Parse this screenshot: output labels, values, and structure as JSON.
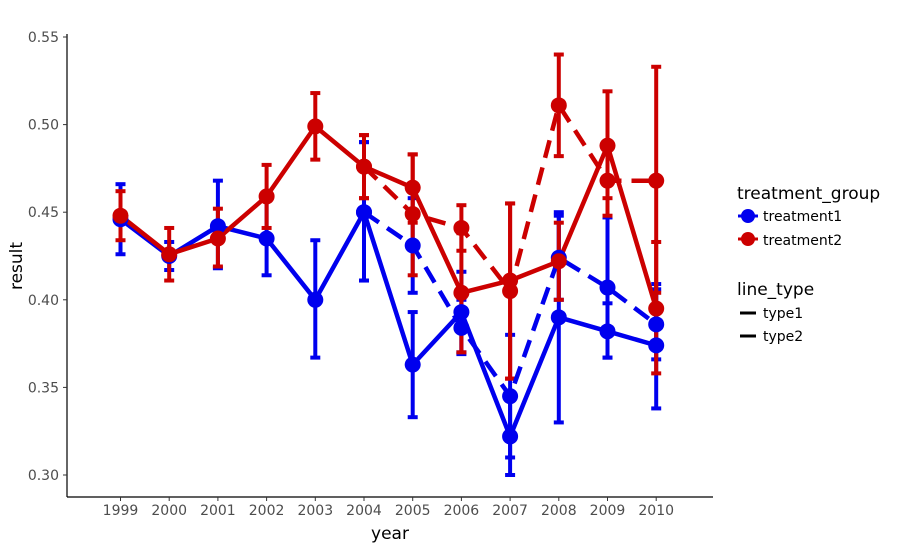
{
  "chart_data": {
    "type": "line",
    "x_label": "year",
    "y_label": "result",
    "x_categories": [
      "1999",
      "2000",
      "2001",
      "2002",
      "2003",
      "2004",
      "2005",
      "2006",
      "2007",
      "2008",
      "2009",
      "2010"
    ],
    "y_ticks": [
      "0.30",
      "0.35",
      "0.40",
      "0.45",
      "0.50",
      "0.55"
    ],
    "y_range": [
      0.288,
      0.555
    ],
    "grid": false,
    "legend_position": "right",
    "colors": {
      "treatment1": "#0000EE",
      "treatment2": "#CC0000"
    },
    "legends": {
      "color": {
        "title": "treatment_group",
        "entries": [
          "treatment1",
          "treatment2"
        ]
      },
      "linetype": {
        "title": "line_type",
        "entries": [
          "type1",
          "type2"
        ]
      }
    },
    "series": [
      {
        "group": "treatment1",
        "line_type": "type1",
        "dash": "solid",
        "x": [
          "1999",
          "2000",
          "2001",
          "2002",
          "2003",
          "2004",
          "2005",
          "2006",
          "2007",
          "2008",
          "2009",
          "2010"
        ],
        "y": [
          0.446,
          0.425,
          0.442,
          0.435,
          0.4,
          0.45,
          0.363,
          0.393,
          0.322,
          0.39,
          0.382,
          0.374
        ],
        "lower": [
          0.426,
          0.417,
          0.418,
          0.414,
          0.367,
          0.411,
          0.333,
          0.37,
          0.3,
          0.33,
          0.367,
          0.338
        ],
        "upper": [
          0.466,
          0.433,
          0.468,
          0.457,
          0.434,
          0.49,
          0.393,
          0.416,
          0.344,
          0.45,
          0.398,
          0.409
        ]
      },
      {
        "group": "treatment1",
        "line_type": "type2",
        "dash": "dashed",
        "x": [
          "2004",
          "2005",
          "2006",
          "2007",
          "2008",
          "2009",
          "2010"
        ],
        "y": [
          0.45,
          0.431,
          0.384,
          0.345,
          0.424,
          0.407,
          0.386
        ],
        "lower": [
          0.411,
          0.404,
          0.369,
          0.31,
          0.4,
          0.367,
          0.366
        ],
        "upper": [
          0.49,
          0.458,
          0.4,
          0.38,
          0.448,
          0.447,
          0.406
        ]
      },
      {
        "group": "treatment2",
        "line_type": "type1",
        "dash": "solid",
        "x": [
          "1999",
          "2000",
          "2001",
          "2002",
          "2003",
          "2004",
          "2005",
          "2006",
          "2007",
          "2008",
          "2009",
          "2010"
        ],
        "y": [
          0.448,
          0.426,
          0.435,
          0.459,
          0.499,
          0.476,
          0.464,
          0.404,
          0.411,
          0.422,
          0.488,
          0.395
        ],
        "lower": [
          0.434,
          0.411,
          0.419,
          0.441,
          0.48,
          0.458,
          0.444,
          0.37,
          0.355,
          0.4,
          0.458,
          0.358
        ],
        "upper": [
          0.462,
          0.441,
          0.452,
          0.477,
          0.518,
          0.494,
          0.483,
          0.438,
          0.455,
          0.444,
          0.519,
          0.433
        ]
      },
      {
        "group": "treatment2",
        "line_type": "type2",
        "dash": "dashed",
        "x": [
          "2004",
          "2005",
          "2006",
          "2007",
          "2008",
          "2009",
          "2010"
        ],
        "y": [
          0.476,
          0.449,
          0.441,
          0.405,
          0.511,
          0.468,
          0.468
        ],
        "lower": [
          0.458,
          0.414,
          0.428,
          0.355,
          0.482,
          0.448,
          0.404
        ],
        "upper": [
          0.494,
          0.483,
          0.454,
          0.455,
          0.54,
          0.488,
          0.533
        ]
      }
    ]
  }
}
